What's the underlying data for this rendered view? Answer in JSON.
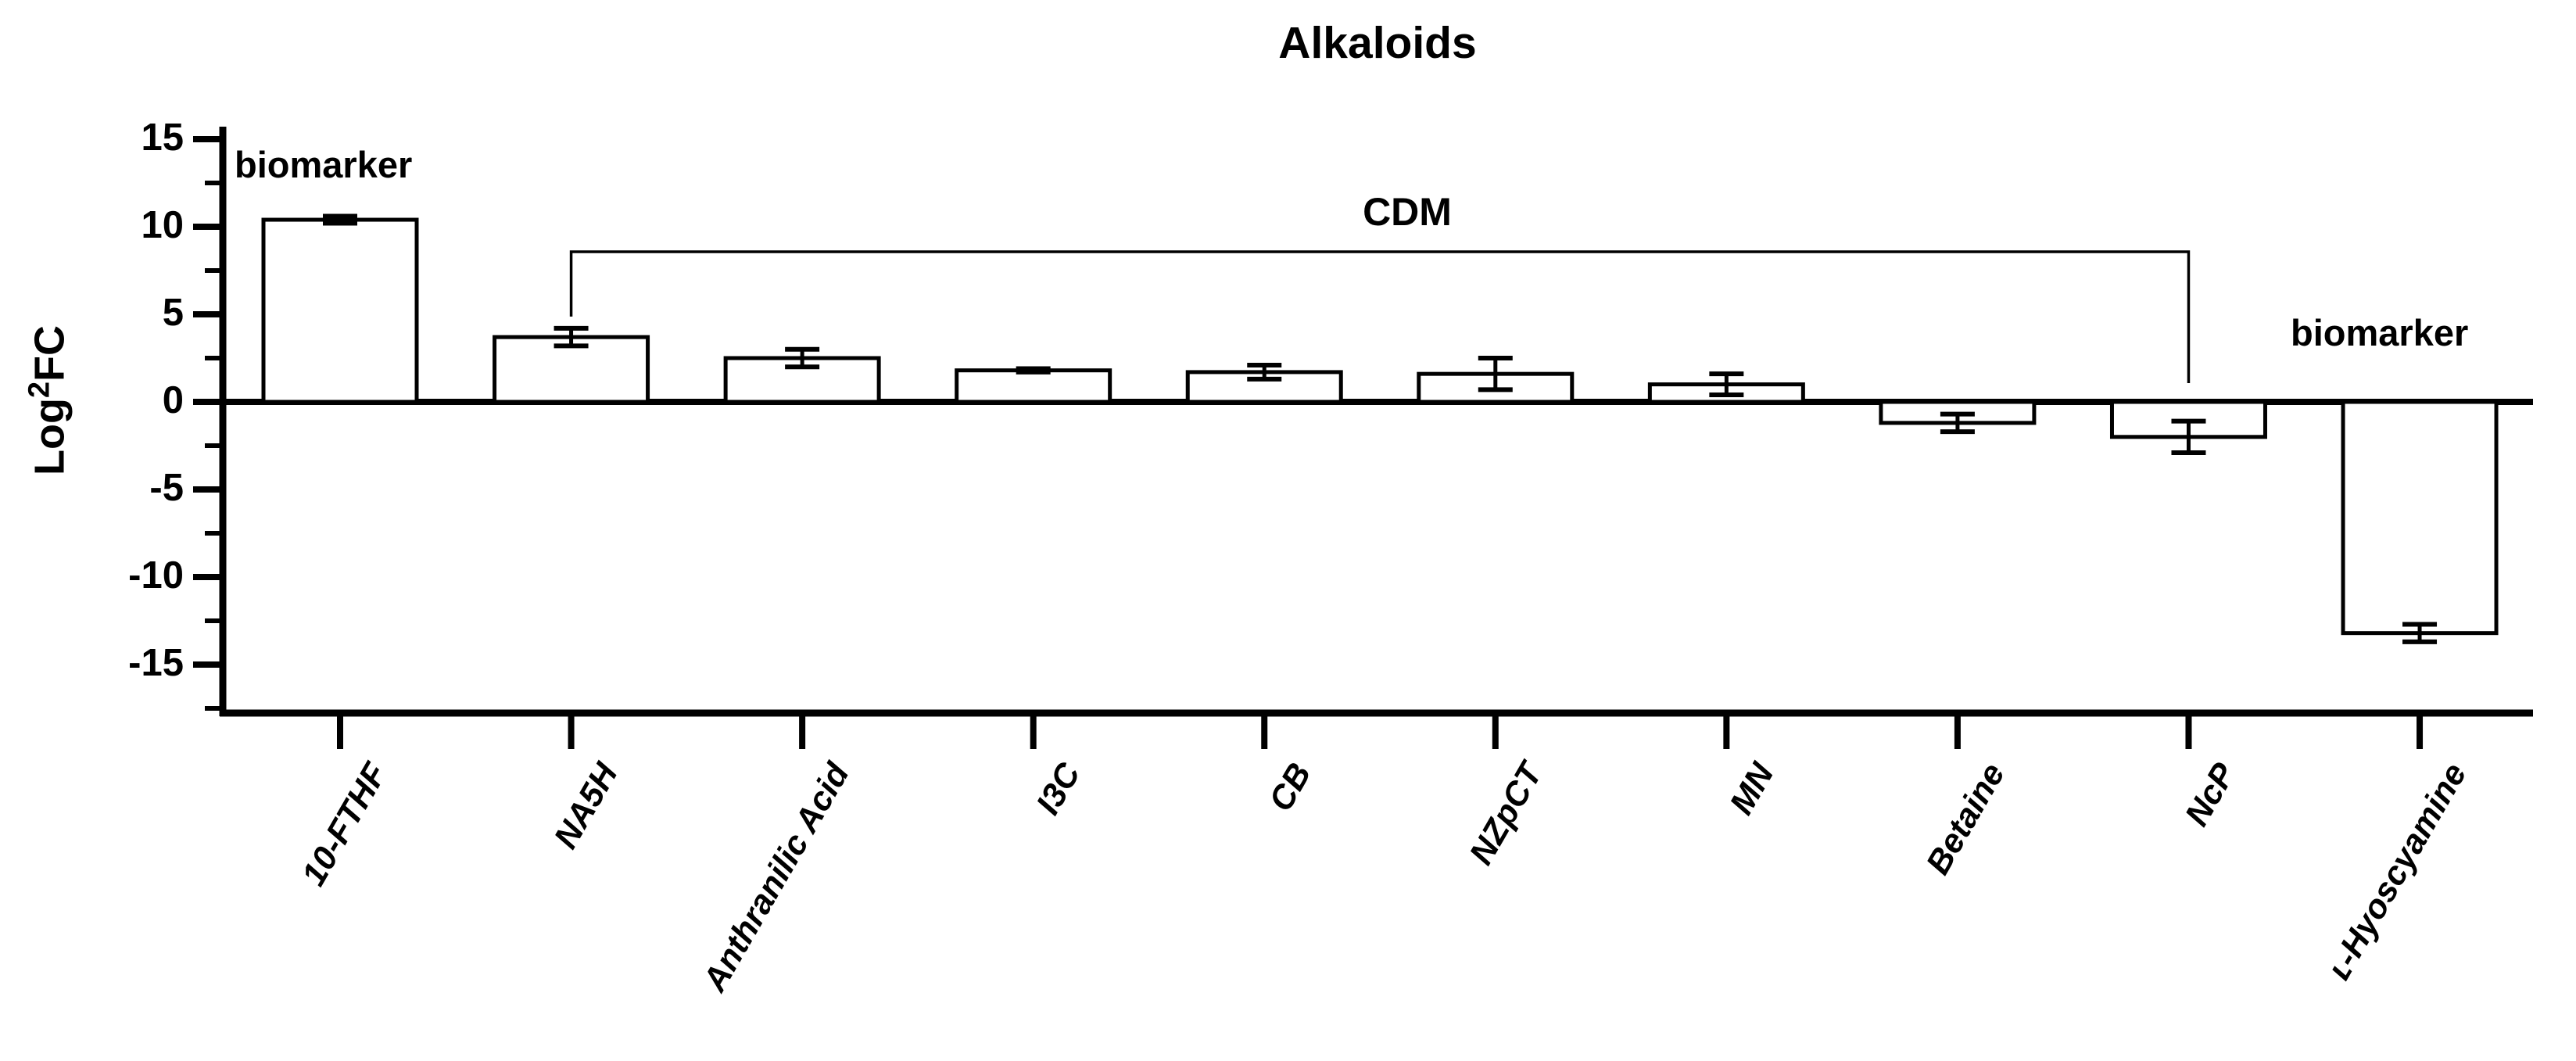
{
  "title": "Alkaloids",
  "y_axis": {
    "label_prefix": "Log",
    "label_sup": "2",
    "label_suffix": "FC",
    "tick_labels": [
      "15",
      "10",
      "5",
      "0",
      "-5",
      "-10",
      "-15"
    ],
    "tick_values": [
      15,
      10,
      5,
      0,
      -5,
      -10,
      -15
    ],
    "minor_tick_values": [
      12.5,
      7.5,
      2.5,
      -2.5,
      -7.5,
      -12.5,
      -17.5
    ]
  },
  "annotations": {
    "biomarker_left": "biomarker",
    "biomarker_right": "biomarker",
    "cdm_label": "CDM"
  },
  "colors": {
    "foreground": "#000000",
    "background": "#ffffff",
    "bar_fill": "#ffffff",
    "bar_stroke": "#000000"
  },
  "chart_data": {
    "type": "bar",
    "title": "Alkaloids",
    "ylabel": "Log2FC",
    "xlabel": "",
    "categories": [
      "10-FTHF",
      "NA5H",
      "Anthranilic Acid",
      "I3C",
      "CB",
      "NZpCT",
      "MN",
      "Betaine",
      "NcP",
      "ʟ-Hyoscyamine"
    ],
    "values": [
      10.4,
      3.7,
      2.5,
      1.8,
      1.7,
      1.6,
      1.0,
      -1.2,
      -2.0,
      -13.2
    ],
    "errors": [
      0.2,
      0.5,
      0.5,
      0.1,
      0.4,
      0.9,
      0.6,
      0.5,
      0.9,
      0.5
    ],
    "ylim": [
      -17.8,
      15.6
    ],
    "y_major_step": 5,
    "y_minor_step": 2.5,
    "grid": false,
    "legend": false,
    "bar_style": "open (white fill, black outline) with error bars",
    "annotations": [
      {
        "type": "text",
        "text": "biomarker",
        "target_category": "10-FTHF",
        "position": "above bar"
      },
      {
        "type": "text",
        "text": "biomarker",
        "target_category": "ʟ-Hyoscyamine",
        "position": "above axis"
      },
      {
        "type": "bracket",
        "label": "CDM",
        "from_category": "NA5H",
        "to_category": "NcP"
      }
    ]
  }
}
